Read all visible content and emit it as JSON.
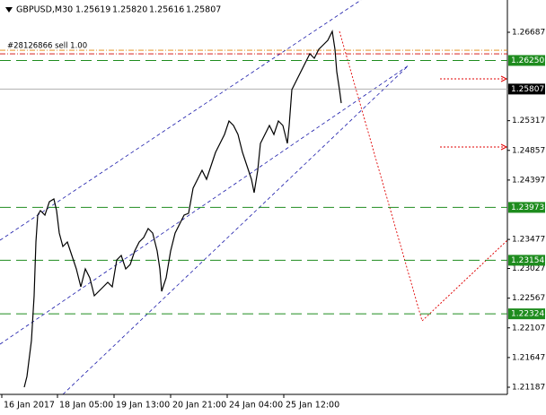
{
  "chart_data": {
    "type": "line",
    "symbol": "GBPUSD,M30",
    "ohlc": [
      1.25619,
      {
        "value": 1.2582,
        "label": "1.25820"
      },
      1.25616,
      1.25807
    ],
    "x": [
      27,
      30,
      35,
      38,
      40,
      42,
      45,
      50,
      55,
      60,
      63,
      66,
      70,
      75,
      80,
      85,
      90,
      95,
      100,
      105,
      110,
      115,
      120,
      125,
      130,
      135,
      140,
      145,
      150,
      155,
      160,
      165,
      170,
      175,
      178,
      180,
      185,
      190,
      195,
      200,
      205,
      210,
      215,
      220,
      225,
      230,
      235,
      240,
      245,
      250,
      255,
      260,
      265,
      270,
      275,
      280,
      283,
      287,
      290,
      295,
      300,
      305,
      310,
      315,
      320,
      322,
      325,
      330,
      335,
      340,
      345,
      350,
      355,
      360,
      365,
      370,
      373,
      375,
      378,
      380
    ],
    "values": [
      1.21187,
      1.21354,
      1.21909,
      1.22604,
      1.23437,
      1.23854,
      1.23923,
      1.23854,
      1.24062,
      1.24104,
      1.23923,
      1.23576,
      1.23368,
      1.23437,
      1.23229,
      1.2302,
      1.22743,
      1.2302,
      1.22881,
      1.22604,
      1.22673,
      1.22743,
      1.22812,
      1.22743,
      1.23159,
      1.23229,
      1.2302,
      1.2309,
      1.23298,
      1.23437,
      1.23506,
      1.23645,
      1.23576,
      1.23298,
      1.2302,
      1.22673,
      1.22881,
      1.23298,
      1.23576,
      1.23715,
      1.23854,
      1.23881,
      1.2427,
      1.24409,
      1.24548,
      1.24409,
      1.24618,
      1.24826,
      1.24965,
      1.25104,
      1.25312,
      1.25243,
      1.25104,
      1.24826,
      1.24618,
      1.24409,
      1.24201,
      1.24548,
      1.24965,
      1.25104,
      1.25243,
      1.25104,
      1.25312,
      1.25243,
      1.24965,
      1.25243,
      1.25798,
      1.25937,
      1.26076,
      1.26215,
      1.26354,
      1.26284,
      1.26423,
      1.26493,
      1.26562,
      1.26701,
      1.26423,
      1.26076,
      1.25798,
      1.2559
    ],
    "color": "#000000",
    "xlim": [
      0,
      565
    ],
    "xticks": [
      {
        "value": 2,
        "label": "16 Jan 2017"
      },
      {
        "value": 64,
        "label": "18 Jan 05:00"
      },
      {
        "value": 127,
        "label": "19 Jan 13:00"
      },
      {
        "value": 190,
        "label": "20 Jan 21:00"
      },
      {
        "value": 253,
        "label": "24 Jan 04:00"
      },
      {
        "value": 316,
        "label": "25 Jan 12:00"
      }
    ],
    "ylim": [
      1.21076,
      1.27187
    ],
    "yticks": [
      1.26687,
      1.25317,
      1.24857,
      1.24397,
      1.23477,
      1.23027,
      1.22567,
      1.22107,
      1.21647,
      1.21187
    ],
    "levels": [
      {
        "value": 1.2625,
        "label": "1.26250"
      },
      1.23973,
      1.23154,
      1.22324
    ],
    "level_color": "#1e8c1e",
    "current_price": 1.25807,
    "orders": [
      {
        "label": "#28126866 sell 1.00",
        "price": 1.26409,
        "color": "#e08000"
      },
      {
        "price": 1.26353,
        "color": "#d00000"
      }
    ]
  }
}
